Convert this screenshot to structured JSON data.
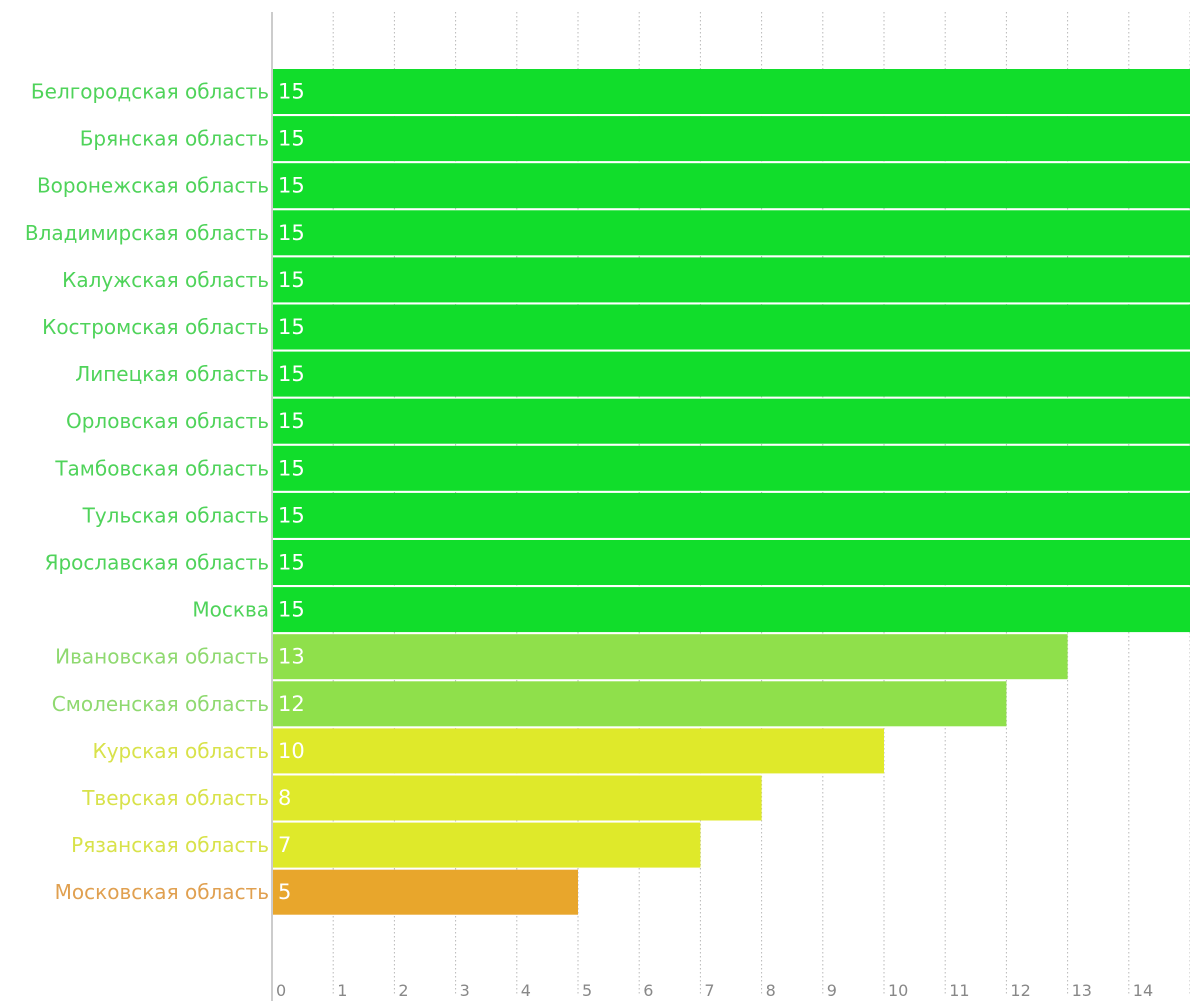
{
  "chart_data": {
    "type": "bar",
    "orientation": "horizontal",
    "title": "",
    "xlabel": "",
    "ylabel": "",
    "xlim": [
      0,
      15
    ],
    "x_ticks": [
      0,
      1,
      2,
      3,
      4,
      5,
      6,
      7,
      8,
      9,
      10,
      11,
      12,
      13,
      14
    ],
    "grid": true,
    "legend": "none",
    "categories": [
      "Белгородская область",
      "Брянская область",
      "Воронежская область",
      "Владимирская область",
      "Калужская область",
      "Костромская область",
      "Липецкая область",
      "Орловская область",
      "Тамбовская область",
      "Тульская область",
      "Ярославская область",
      "Москва",
      "Ивановская область",
      "Смоленская область",
      "Курская область",
      "Тверская область",
      "Рязанская область",
      "Московская область"
    ],
    "values": [
      15,
      15,
      15,
      15,
      15,
      15,
      15,
      15,
      15,
      15,
      15,
      15,
      13,
      12,
      10,
      8,
      7,
      5
    ],
    "data_labels": [
      "15",
      "15",
      "15",
      "15",
      "15",
      "15",
      "15",
      "15",
      "15",
      "15",
      "15",
      "15",
      "13",
      "12",
      "10",
      "8",
      "7",
      "5"
    ],
    "bar_colors": [
      "#11dd2b",
      "#11dd2b",
      "#11dd2b",
      "#11dd2b",
      "#11dd2b",
      "#11dd2b",
      "#11dd2b",
      "#11dd2b",
      "#11dd2b",
      "#11dd2b",
      "#11dd2b",
      "#11dd2b",
      "#8fe04b",
      "#8fe04b",
      "#dfe92a",
      "#dfe92a",
      "#dfe92a",
      "#e8a62c"
    ],
    "label_colors": [
      "#4fd35a",
      "#4fd35a",
      "#4fd35a",
      "#4fd35a",
      "#4fd35a",
      "#4fd35a",
      "#4fd35a",
      "#4fd35a",
      "#4fd35a",
      "#4fd35a",
      "#4fd35a",
      "#4fd35a",
      "#8fd970",
      "#8fd970",
      "#d8e24a",
      "#d8e24a",
      "#d8e24a",
      "#e0a050"
    ]
  }
}
